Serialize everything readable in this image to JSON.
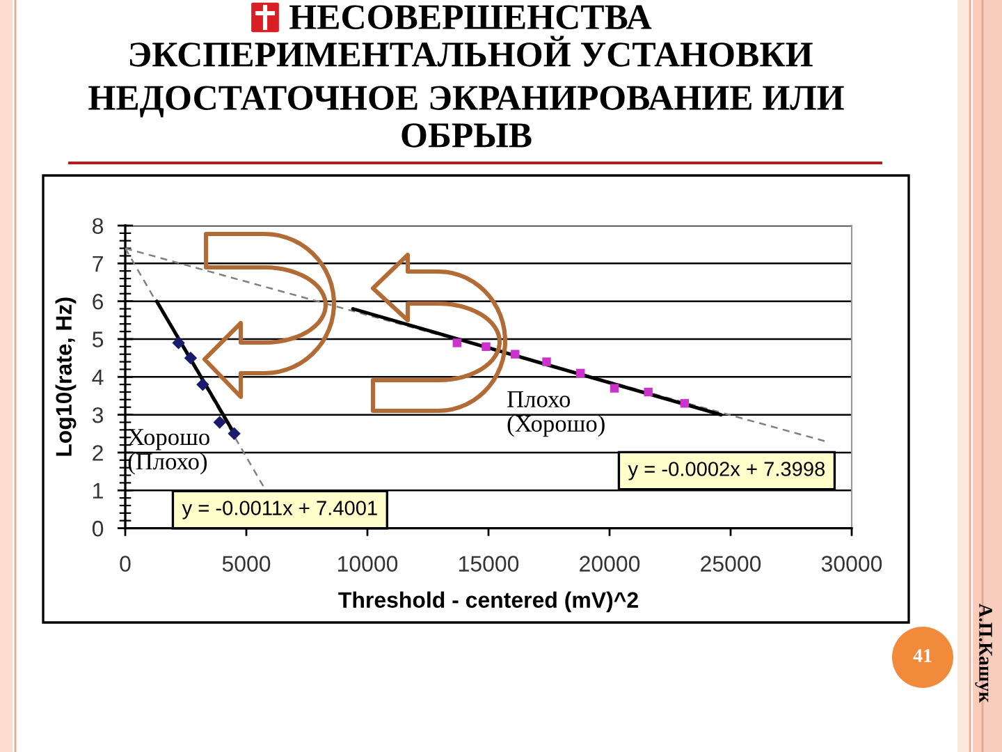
{
  "chart_data": {
    "type": "scatter",
    "title": "НЕСОВЕРШЕНСТВА\nЭКСПЕРИМЕНТАЛЬНОЙ УСТАНОВКИ",
    "subtitle": "НЕДОСТАТОЧНОЕ ЭКРАНИРОВАНИЕ ИЛИ\nОБРЫВ",
    "xlabel": "Threshold - centered (mV)^2",
    "ylabel": "Log10(rate, Hz)",
    "xlim": [
      0,
      30000
    ],
    "xticks": [
      0,
      5000,
      10000,
      15000,
      20000,
      25000,
      30000
    ],
    "ylim": [
      0,
      8
    ],
    "yticks": [
      0,
      1,
      2,
      3,
      4,
      5,
      6,
      7,
      8
    ],
    "grid": "y",
    "series": [
      {
        "type": "line",
        "line_style": "dashed",
        "color": "#808080",
        "x": [
          0,
          5800
        ],
        "values": [
          7.4,
          1.0
        ]
      },
      {
        "type": "line",
        "line_style": "dashed",
        "color": "#808080",
        "x": [
          0,
          28900
        ],
        "values": [
          7.4,
          2.3
        ]
      },
      {
        "type": "line",
        "line_style": "solid",
        "color": "#000000",
        "x": [
          1300,
          4500
        ],
        "values": [
          6.0,
          2.5
        ]
      },
      {
        "type": "line",
        "line_style": "solid",
        "color": "#000000",
        "x": [
          9400,
          24600
        ],
        "values": [
          5.8,
          3.0
        ]
      },
      {
        "marker": "diamond",
        "color": "#1b1b6e",
        "x": [
          2200,
          2700,
          3200,
          3900,
          4500
        ],
        "values": [
          4.9,
          4.5,
          3.8,
          2.8,
          2.5
        ]
      },
      {
        "marker": "square",
        "color": "#cc33cc",
        "x": [
          13700,
          14900,
          16100,
          17400,
          18800,
          20200,
          21600,
          23100
        ],
        "values": [
          4.9,
          4.8,
          4.6,
          4.4,
          4.1,
          3.7,
          3.6,
          3.3
        ]
      }
    ],
    "annotations": [
      "Хорошо\n(Плохо)",
      "Плохо\n(Хорошо)",
      "y = -0.0011x + 7.4001",
      "y = -0.0002x + 7.3998",
      "41",
      "А.П.Кашук"
    ]
  }
}
